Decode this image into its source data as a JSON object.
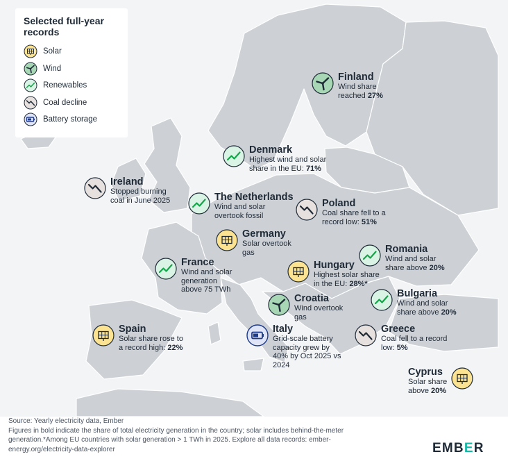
{
  "legend": {
    "title": "Selected full-year\nrecords",
    "items": [
      {
        "key": "solar",
        "label": "Solar"
      },
      {
        "key": "wind",
        "label": "Wind"
      },
      {
        "key": "renewables",
        "label": "Renewables"
      },
      {
        "key": "coal",
        "label": "Coal decline"
      },
      {
        "key": "battery",
        "label": "Battery storage"
      }
    ]
  },
  "colors": {
    "solar": "#fbe392",
    "wind": "#a7d7b5",
    "renewables": "#d9f4e4",
    "coal": "#e6e0de",
    "battery": "#dfe5f7",
    "land": "#cdd1d6",
    "sea": "#f3f4f6",
    "accent": "#14b8a6"
  },
  "records": [
    {
      "id": "finland",
      "country": "Finland",
      "type": "wind",
      "text": "Wind share\nreached",
      "bold": "27%"
    },
    {
      "id": "denmark",
      "country": "Denmark",
      "type": "renewables",
      "text": "Highest wind and solar\nshare in the EU:",
      "bold": "71%"
    },
    {
      "id": "ireland",
      "country": "Ireland",
      "type": "coal",
      "text": "Stopped burning\ncoal in June 2025",
      "bold": ""
    },
    {
      "id": "netherlands",
      "country": "The Netherlands",
      "type": "renewables",
      "text": "Wind and solar\novertook fossil",
      "bold": ""
    },
    {
      "id": "poland",
      "country": "Poland",
      "type": "coal",
      "text": "Coal share fell to a\nrecord low:",
      "bold": "51%"
    },
    {
      "id": "germany",
      "country": "Germany",
      "type": "solar",
      "text": "Solar overtook\ngas",
      "bold": ""
    },
    {
      "id": "romania",
      "country": "Romania",
      "type": "renewables",
      "text": "Wind and solar\nshare above",
      "bold": "20%"
    },
    {
      "id": "france",
      "country": "France",
      "type": "renewables",
      "text": "Wind and solar\ngeneration\nabove 75 TWh",
      "bold": ""
    },
    {
      "id": "hungary",
      "country": "Hungary",
      "type": "solar",
      "text": "Highest solar share\nin the EU:",
      "bold": "28%*"
    },
    {
      "id": "bulgaria",
      "country": "Bulgaria",
      "type": "renewables",
      "text": "Wind and solar\nshare above",
      "bold": "20%"
    },
    {
      "id": "croatia",
      "country": "Croatia",
      "type": "wind",
      "text": "Wind overtook\ngas",
      "bold": ""
    },
    {
      "id": "spain",
      "country": "Spain",
      "type": "solar",
      "text": "Solar share rose to\na record high:",
      "bold": "22%"
    },
    {
      "id": "italy",
      "country": "Italy",
      "type": "battery",
      "text": "Grid-scale battery\ncapacity grew by\n40% by Oct 2025 vs\n2024",
      "bold": ""
    },
    {
      "id": "greece",
      "country": "Greece",
      "type": "coal",
      "text": "Coal fell to a record\nlow:",
      "bold": "5%"
    },
    {
      "id": "cyprus",
      "country": "Cyprus",
      "type": "solar",
      "text": "Solar share\nabove",
      "bold": "20%"
    }
  ],
  "footer": {
    "source": "Source: Yearly electricity data, Ember",
    "note1": "Figures in bold indicate the share of total electricity generation in the country; solar includes behind-the-meter",
    "note2": "generation.*Among EU countries with solar generation > 1 TWh in 2025. Explore all data records: ember-",
    "note3": "energy.org/electricity-data-explorer"
  },
  "logo": {
    "pre": "EMB",
    "accent": "E",
    "post": "R"
  }
}
